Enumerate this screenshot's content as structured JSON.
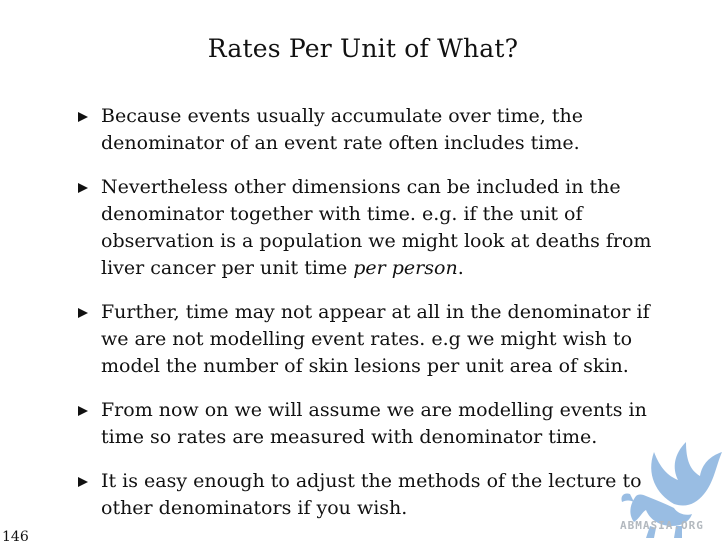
{
  "slide": {
    "title": "Rates Per Unit of What?",
    "page_number": "146",
    "bullets": [
      {
        "text": "Because events usually accumulate over time, the denominator of an event rate often includes time."
      },
      {
        "text": "Nevertheless other dimensions can be included in the denominator together with time. e.g. if the unit of observation is a population we might look at deaths from liver cancer per unit time ",
        "emphasis": "per person",
        "suffix": "."
      },
      {
        "text": "Further, time may not appear at all in the denominator if we are not modelling event rates. e.g we might wish to model the number of skin lesions per unit area of skin."
      },
      {
        "text": "From now on we will assume we are modelling events in time so rates are measured with denominator time."
      },
      {
        "text": "It is easy enough to adjust the methods of the lecture to other denominators if you wish."
      }
    ]
  },
  "watermark": {
    "text": "ABMASIA.ORG",
    "icon": "winged-lion-logo",
    "color": "#8fb6e0"
  }
}
